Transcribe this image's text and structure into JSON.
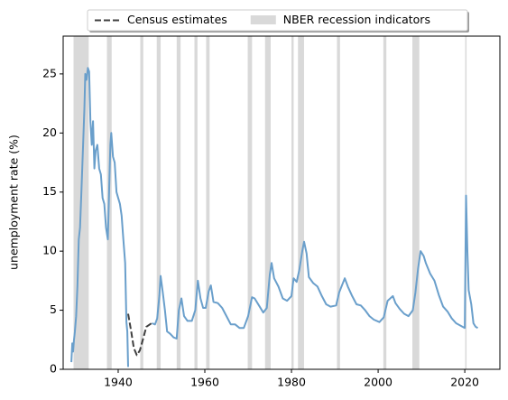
{
  "chart_data": {
    "type": "line",
    "ylabel": "unemployment rate (%)",
    "xlim": [
      1927.3,
      2028.1
    ],
    "ylim": [
      0,
      28.2
    ],
    "xticks": [
      1940,
      1960,
      1980,
      2000,
      2020
    ],
    "yticks": [
      0,
      5,
      10,
      15,
      20,
      25
    ],
    "legend": "upper center",
    "recessions": {
      "name": "NBER recession indicators",
      "color": "#d9d9d9",
      "spans": [
        [
          1929.7,
          1933.2
        ],
        [
          1937.4,
          1938.5
        ],
        [
          1945.1,
          1945.8
        ],
        [
          1948.9,
          1949.8
        ],
        [
          1953.5,
          1954.4
        ],
        [
          1957.6,
          1958.3
        ],
        [
          1960.3,
          1961.1
        ],
        [
          1969.9,
          1970.9
        ],
        [
          1973.9,
          1975.2
        ],
        [
          1980.0,
          1980.5
        ],
        [
          1981.5,
          1982.9
        ],
        [
          1990.5,
          1991.2
        ],
        [
          2001.2,
          2001.9
        ],
        [
          2007.9,
          2009.5
        ],
        [
          2020.1,
          2020.3
        ]
      ]
    },
    "series": [
      {
        "color": "#6a9fcb",
        "style": "solid",
        "x": [
          1929.2,
          1929.4,
          1929.6,
          1929.8,
          1930.0,
          1930.3,
          1930.6,
          1930.9,
          1931.2,
          1931.5,
          1931.9,
          1932.2,
          1932.4,
          1932.7,
          1933.0,
          1933.3,
          1933.6,
          1933.9,
          1934.2,
          1934.5,
          1934.8,
          1935.2,
          1935.6,
          1936.0,
          1936.4,
          1936.8,
          1937.2,
          1937.6,
          1937.9,
          1938.2,
          1938.4,
          1938.8,
          1939.2,
          1939.6,
          1940.0,
          1940.4,
          1940.8,
          1941.2,
          1941.6,
          1941.9,
          1942.1,
          1942.3,
          1945.0,
          1947.8,
          1948.5,
          1949.0,
          1949.5,
          1949.8,
          1950.3,
          1950.8,
          1951.3,
          1952.0,
          1952.8,
          1953.5,
          1954.0,
          1954.6,
          1955.2,
          1956.0,
          1957.0,
          1957.8,
          1958.4,
          1959.0,
          1959.6,
          1960.2,
          1960.9,
          1961.4,
          1962.0,
          1963.0,
          1964.0,
          1965.0,
          1966.0,
          1967.0,
          1968.0,
          1969.0,
          1970.0,
          1970.9,
          1971.5,
          1972.5,
          1973.5,
          1974.3,
          1975.0,
          1975.4,
          1976.0,
          1977.0,
          1978.0,
          1979.0,
          1980.0,
          1980.5,
          1981.2,
          1981.8,
          1982.5,
          1982.9,
          1983.5,
          1984.0,
          1985.0,
          1986.0,
          1987.0,
          1988.0,
          1989.0,
          1990.3,
          1991.0,
          1992.3,
          1993.0,
          1994.0,
          1995.0,
          1996.0,
          1997.0,
          1998.0,
          1999.0,
          2000.3,
          2001.3,
          2002.2,
          2003.4,
          2004.0,
          2005.0,
          2006.0,
          2007.0,
          2008.0,
          2008.6,
          2009.2,
          2009.8,
          2010.5,
          2011.0,
          2012.0,
          2013.0,
          2014.0,
          2015.0,
          2016.0,
          2017.0,
          2018.0,
          2019.0,
          2020.0,
          2020.3,
          2020.6,
          2020.9,
          2021.5,
          2022.0,
          2022.5,
          2023.0
        ],
        "values": [
          0.6,
          2.2,
          1.5,
          2.5,
          3.2,
          4.5,
          7,
          11,
          12,
          15,
          19,
          22,
          25,
          24.5,
          25.5,
          25.2,
          21,
          19,
          21,
          17,
          18.5,
          19,
          17,
          16.5,
          14.5,
          14,
          12,
          11,
          15,
          19,
          20,
          18,
          17.5,
          15,
          14.5,
          14,
          13,
          11,
          9,
          4,
          3.2,
          0.2,
          null,
          3.9,
          3.8,
          4.3,
          6.2,
          7.9,
          6.5,
          5,
          3.2,
          3,
          2.7,
          2.6,
          5,
          6,
          4.5,
          4.1,
          4.1,
          5,
          7.5,
          6,
          5.2,
          5.2,
          6.6,
          7.1,
          5.7,
          5.6,
          5.2,
          4.5,
          3.8,
          3.8,
          3.5,
          3.5,
          4.5,
          6.1,
          6,
          5.4,
          4.8,
          5.2,
          8,
          9,
          7.7,
          7,
          6,
          5.8,
          6.2,
          7.7,
          7.4,
          8.4,
          10,
          10.8,
          9.8,
          7.8,
          7.3,
          7,
          6.2,
          5.5,
          5.3,
          5.4,
          6.5,
          7.7,
          7,
          6.2,
          5.5,
          5.4,
          5,
          4.5,
          4.2,
          4,
          4.4,
          5.8,
          6.2,
          5.6,
          5.1,
          4.7,
          4.5,
          5,
          6.5,
          8.5,
          10,
          9.6,
          9,
          8.1,
          7.5,
          6.3,
          5.3,
          4.9,
          4.3,
          3.9,
          3.7,
          3.5,
          14.7,
          10,
          6.7,
          5.5,
          3.9,
          3.6,
          3.5
        ]
      },
      {
        "name": "Census estimates",
        "color": "#404040",
        "style": "dashed",
        "x": [
          1942.3,
          1943.0,
          1943.6,
          1944.3,
          1945.0,
          1945.7,
          1946.5,
          1947.7
        ],
        "values": [
          4.7,
          3.2,
          1.8,
          1.2,
          1.6,
          2.5,
          3.6,
          3.9
        ]
      }
    ]
  }
}
